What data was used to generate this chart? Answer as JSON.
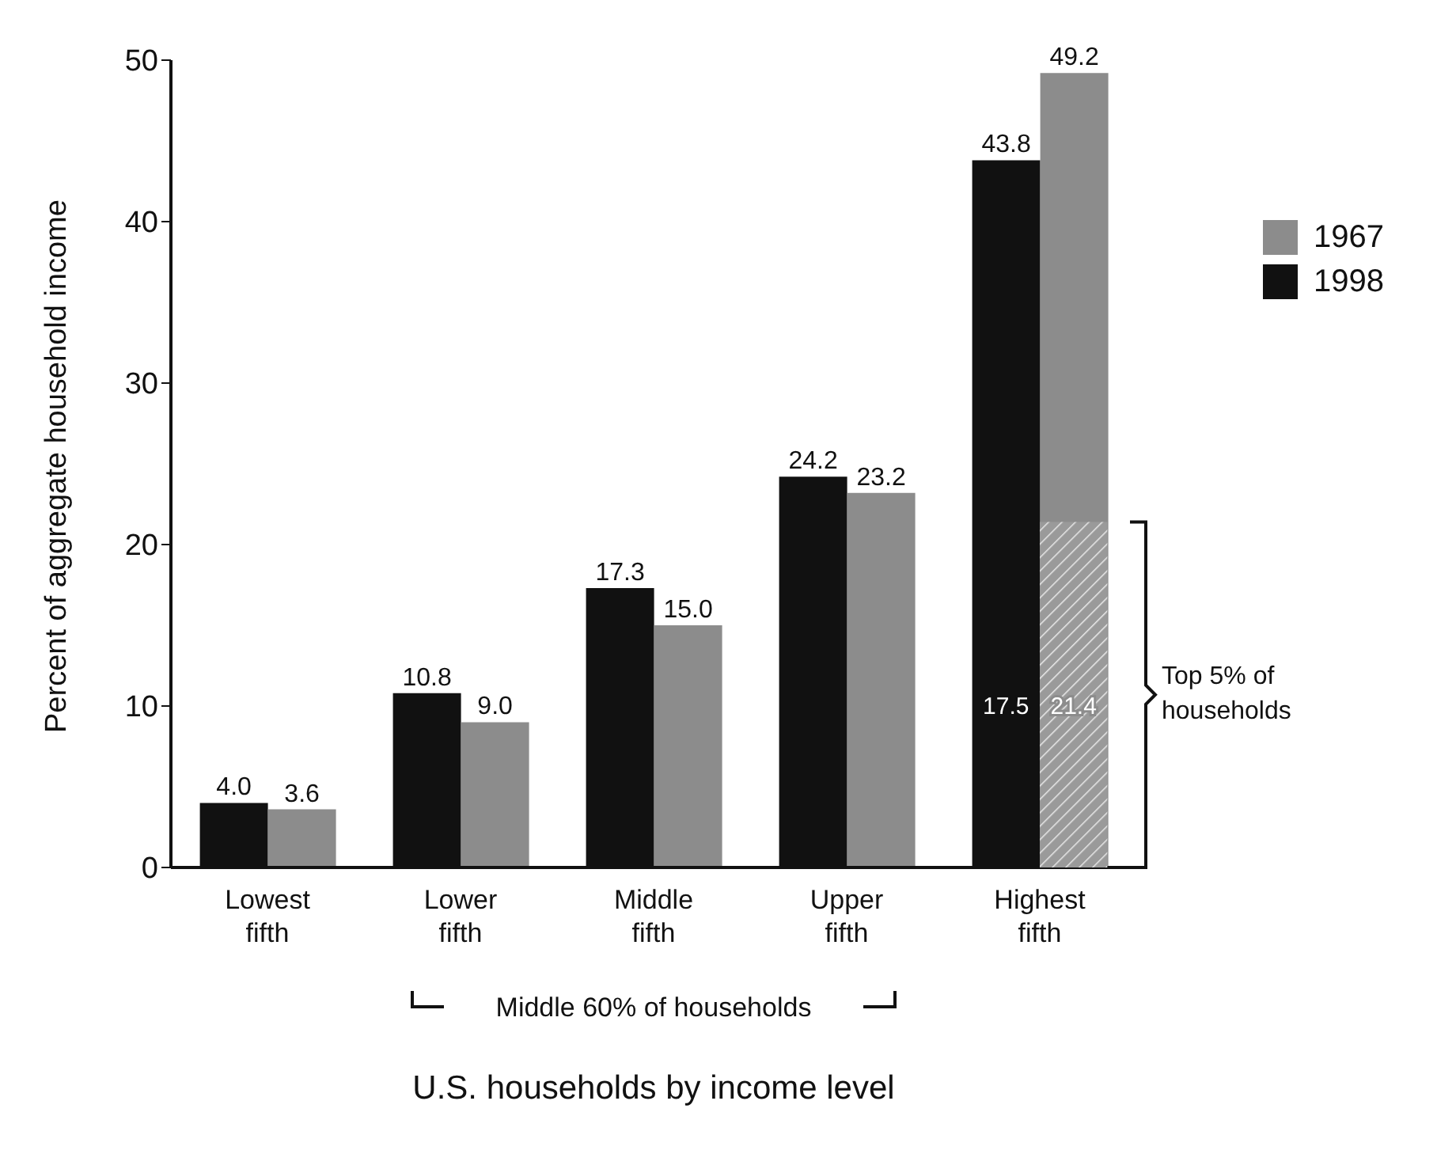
{
  "chart_data": {
    "type": "bar",
    "xlabel": "U.S. households by income level",
    "ylabel": "Percent of aggregate household income",
    "categories": [
      "Lowest fifth",
      "Lower fifth",
      "Middle fifth",
      "Upper fifth",
      "Highest fifth"
    ],
    "series": [
      {
        "name": "1998",
        "color": "#111111",
        "values": [
          4.0,
          10.8,
          17.3,
          24.2,
          43.8
        ],
        "value_labels": [
          "4.0",
          "10.8",
          "17.3",
          "24.2",
          "43.8"
        ]
      },
      {
        "name": "1967",
        "color": "#8c8c8c",
        "values": [
          3.6,
          9.0,
          15.0,
          23.2,
          49.2
        ],
        "value_labels": [
          "3.6",
          "9.0",
          "15.0",
          "23.2",
          "49.2"
        ]
      }
    ],
    "ylim": [
      0,
      50
    ],
    "yticks": [
      0,
      10,
      20,
      30,
      40,
      50
    ],
    "grid": false,
    "legend": "right",
    "bands": [
      {
        "axis": "y",
        "from": 0,
        "to": 21.4,
        "label": "Top 5% of households"
      }
    ],
    "annotations": [
      "Middle 60% of households",
      "17.5",
      "21.4"
    ]
  }
}
